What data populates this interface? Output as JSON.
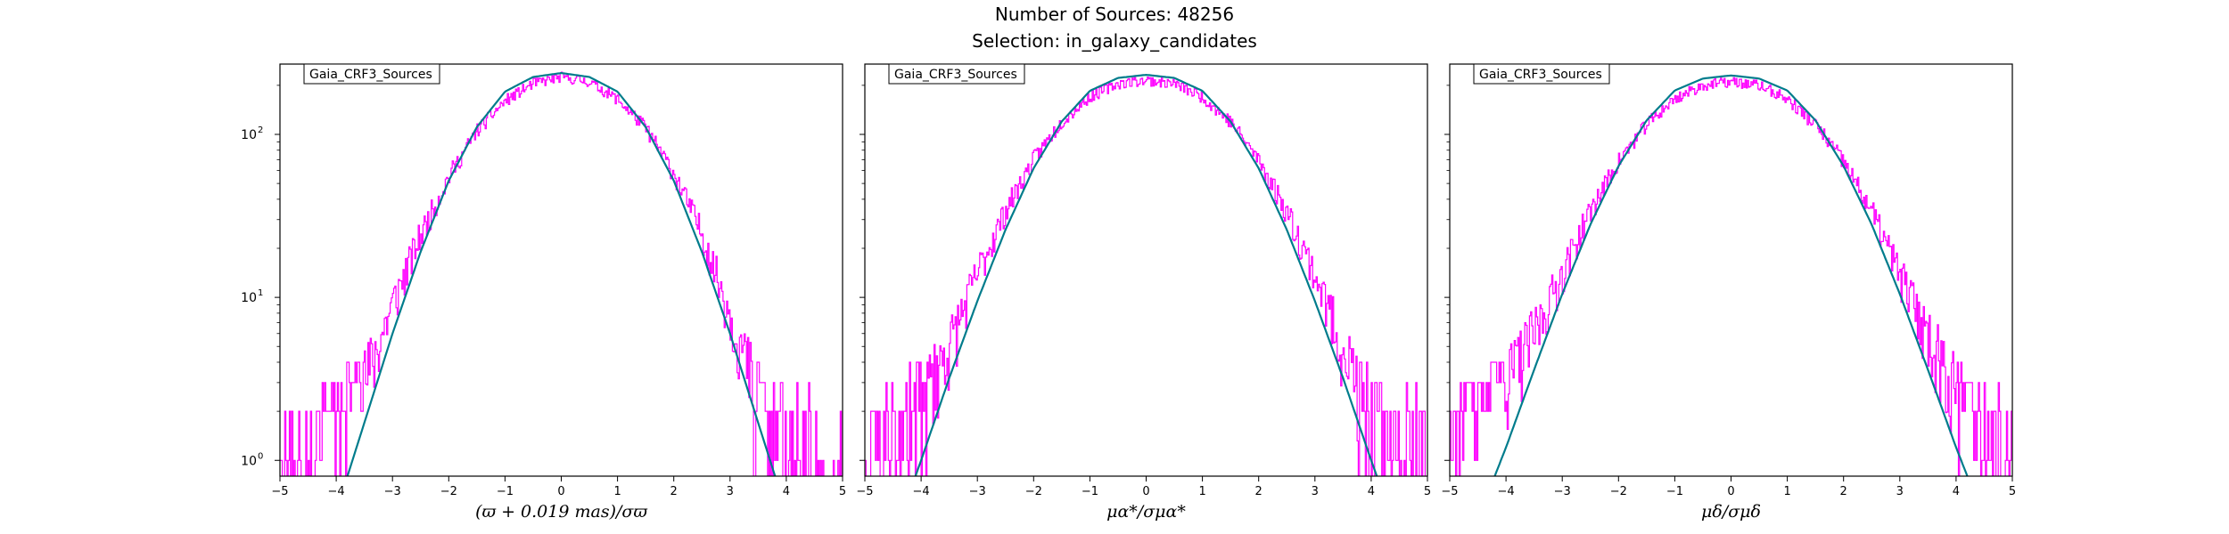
{
  "figure": {
    "title_line1": "Number of Sources: 48256",
    "title_line2": "Selection: in_galaxy_candidates"
  },
  "colors": {
    "histogram": "#ff00ff",
    "fit": "#007c8c",
    "axes": "#000000"
  },
  "chart_data": [
    {
      "type": "line",
      "xlabel": "(ϖ + 0.019 mas)/σϖ",
      "xlim": [
        -5,
        5
      ],
      "ylim": [
        0.8,
        270
      ],
      "y_scale": "log",
      "x_ticks": [
        "−5",
        "−4",
        "−3",
        "−2",
        "−1",
        "0",
        "1",
        "2",
        "3",
        "4",
        "5"
      ],
      "y_ticks": [
        {
          "base": "10",
          "exp": "2",
          "value": 100
        },
        {
          "base": "10",
          "exp": "1",
          "value": 10
        },
        {
          "base": "10",
          "exp": "0",
          "value": 1
        }
      ],
      "legend": {
        "label": "Gaia_CRF3_Sources",
        "position": "top-left"
      },
      "series": [
        {
          "name": "histogram",
          "kind": "step",
          "noise_seed": 11,
          "x": [
            -5,
            -4.5,
            -4,
            -3.5,
            -3,
            -2.5,
            -2,
            -1.5,
            -1,
            -0.5,
            0,
            0.5,
            1,
            1.5,
            2,
            2.5,
            3,
            3.5,
            4,
            4.5,
            5
          ],
          "y": [
            1,
            1.5,
            2,
            3,
            9,
            24,
            55,
            105,
            160,
            205,
            225,
            210,
            165,
            110,
            58,
            25,
            8,
            2.5,
            1.5,
            1,
            1
          ]
        },
        {
          "name": "fit",
          "kind": "line",
          "x": [
            -3.8,
            -3.5,
            -3,
            -2.5,
            -2,
            -1.5,
            -1,
            -0.5,
            0,
            0.5,
            1,
            1.5,
            2,
            2.5,
            3,
            3.5,
            3.8
          ],
          "y": [
            0.8,
            1.7,
            6.0,
            19,
            52,
            111,
            183,
            225,
            238,
            225,
            183,
            111,
            52,
            19,
            6.0,
            1.7,
            0.8
          ]
        }
      ]
    },
    {
      "type": "line",
      "xlabel": "μα*/σμα*",
      "xlim": [
        -5,
        5
      ],
      "ylim": [
        0.8,
        270
      ],
      "y_scale": "log",
      "x_ticks": [
        "−5",
        "−4",
        "−3",
        "−2",
        "−1",
        "0",
        "1",
        "2",
        "3",
        "4",
        "5"
      ],
      "y_ticks": [
        {
          "base": "",
          "exp": "",
          "value": 100
        },
        {
          "base": "",
          "exp": "",
          "value": 10
        },
        {
          "base": "",
          "exp": "",
          "value": 1
        }
      ],
      "legend": {
        "label": "Gaia_CRF3_Sources",
        "position": "top-left"
      },
      "series": [
        {
          "name": "histogram",
          "kind": "step",
          "noise_seed": 23,
          "x": [
            -5,
            -4.5,
            -4,
            -3.5,
            -3,
            -2.5,
            -2,
            -1.5,
            -1,
            -0.5,
            0,
            0.5,
            1,
            1.5,
            2,
            2.5,
            3,
            3.5,
            4,
            4.5,
            5
          ],
          "y": [
            1,
            1.5,
            2.5,
            5,
            14,
            34,
            70,
            120,
            170,
            205,
            215,
            205,
            170,
            120,
            70,
            34,
            14,
            5,
            2,
            1.2,
            1
          ]
        },
        {
          "name": "fit",
          "kind": "line",
          "x": [
            -4.1,
            -4,
            -3.5,
            -3,
            -2.5,
            -2,
            -1.5,
            -1,
            -0.5,
            0,
            0.5,
            1,
            1.5,
            2,
            2.5,
            3,
            3.5,
            4,
            4.1
          ],
          "y": [
            0.8,
            1.0,
            3.2,
            9.5,
            26,
            62,
            120,
            185,
            222,
            232,
            222,
            185,
            120,
            62,
            26,
            9.5,
            3.2,
            1.0,
            0.8
          ]
        }
      ]
    },
    {
      "type": "line",
      "xlabel": "μδ/σμδ",
      "xlim": [
        -5,
        5
      ],
      "ylim": [
        0.8,
        270
      ],
      "y_scale": "log",
      "x_ticks": [
        "−5",
        "−4",
        "−3",
        "−2",
        "−1",
        "0",
        "1",
        "2",
        "3",
        "4",
        "5"
      ],
      "y_ticks": [
        {
          "base": "",
          "exp": "",
          "value": 100
        },
        {
          "base": "",
          "exp": "",
          "value": 10
        },
        {
          "base": "",
          "exp": "",
          "value": 1
        }
      ],
      "legend": {
        "label": "Gaia_CRF3_Sources",
        "position": "top-left"
      },
      "series": [
        {
          "name": "histogram",
          "kind": "step",
          "noise_seed": 37,
          "x": [
            -5,
            -4.5,
            -4,
            -3.5,
            -3,
            -2.5,
            -2,
            -1.5,
            -1,
            -0.5,
            0,
            0.5,
            1,
            1.5,
            2,
            2.5,
            3,
            3.5,
            4,
            4.5,
            5
          ],
          "y": [
            1,
            1.8,
            3,
            6,
            14,
            34,
            68,
            115,
            165,
            200,
            210,
            200,
            165,
            115,
            68,
            34,
            14,
            6,
            3,
            1.5,
            1
          ]
        },
        {
          "name": "fit",
          "kind": "line",
          "x": [
            -4.2,
            -4,
            -3.5,
            -3,
            -2.5,
            -2,
            -1.5,
            -1,
            -0.5,
            0,
            0.5,
            1,
            1.5,
            2,
            2.5,
            3,
            3.5,
            4,
            4.2
          ],
          "y": [
            0.8,
            1.2,
            3.6,
            10.5,
            28,
            64,
            122,
            186,
            220,
            230,
            220,
            186,
            122,
            64,
            28,
            10.5,
            3.6,
            1.2,
            0.8
          ]
        }
      ]
    }
  ]
}
